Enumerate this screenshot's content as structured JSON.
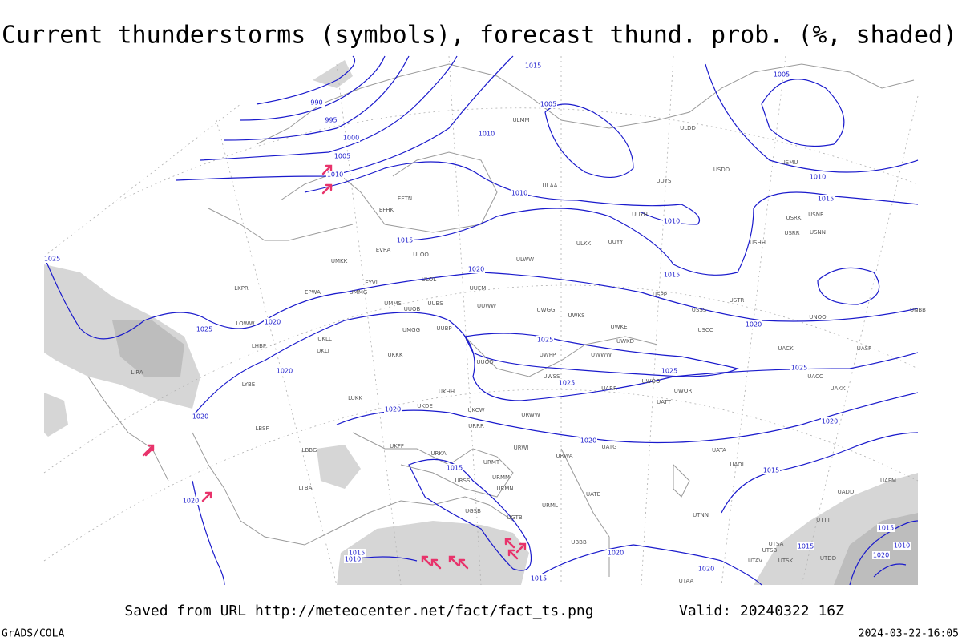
{
  "title": "Current thunderstorms (symbols), forecast thund. prob. (%, shaded)",
  "footer": {
    "saved": "Saved from URL http://meteocenter.net/fact/fact_ts.png",
    "valid": "Valid: 20240322 16Z",
    "credit": "GrADS/COLA",
    "timestamp": "2024-03-22-16:05"
  },
  "isobar_labels": [
    1015,
    1005,
    990,
    995,
    1000,
    1005,
    1010,
    1010,
    1005,
    1010,
    1010,
    1010,
    1015,
    1015,
    1020,
    1015,
    1025,
    1025,
    1020,
    1020,
    1020,
    1025,
    1025,
    1025,
    1025,
    1020,
    1020,
    1020,
    1020,
    1015,
    1015,
    1020,
    1015,
    1010,
    1020,
    1020,
    1015,
    1015,
    1015,
    1020,
    1010
  ],
  "stations": [
    "ULDD",
    "USDD",
    "USMU",
    "UUYS",
    "ULAA",
    "UUYH",
    "USRK",
    "USNR",
    "USRR",
    "USNN",
    "UUYY",
    "ULKK",
    "USHH",
    "ULMM",
    "EFHK",
    "EETN",
    "EVRA",
    "ULOO",
    "ULWW",
    "UMKK",
    "UUEM",
    "ULOL",
    "EYVI",
    "UMMG",
    "EPWA",
    "UUWW",
    "UMMS",
    "UUOB",
    "UUBS",
    "UWGG",
    "UWKS",
    "USSS",
    "USTR",
    "UNOO",
    "UNBB",
    "USPP",
    "USCC",
    "UWKE",
    "UMGG",
    "UUBP",
    "UKLL",
    "UKLI",
    "UKKK",
    "UWPP",
    "UWWW",
    "UWKD",
    "UACK",
    "UASP",
    "UUOO",
    "UWSS",
    "UARR",
    "UWOO",
    "UWOR",
    "UATT",
    "UACC",
    "UAKK",
    "UKHH",
    "UKDE",
    "UKCW",
    "URWW",
    "URRR",
    "UKFF",
    "URKA",
    "URWI",
    "URWA",
    "UATG",
    "UATA",
    "UAOL",
    "URMT",
    "URSS",
    "URMM",
    "URMN",
    "UATE",
    "URML",
    "UGSB",
    "UGTB",
    "UBBB",
    "UTNN",
    "UTAA",
    "UTAV",
    "UTSA",
    "UTSB",
    "UTSK",
    "UTDD",
    "UTTT",
    "UAFM",
    "UADD",
    "LIRA",
    "LYBE",
    "LUKK",
    "LBSF",
    "LTBA",
    "LHBP",
    "LOWW",
    "LKPR",
    "LBBG"
  ]
}
